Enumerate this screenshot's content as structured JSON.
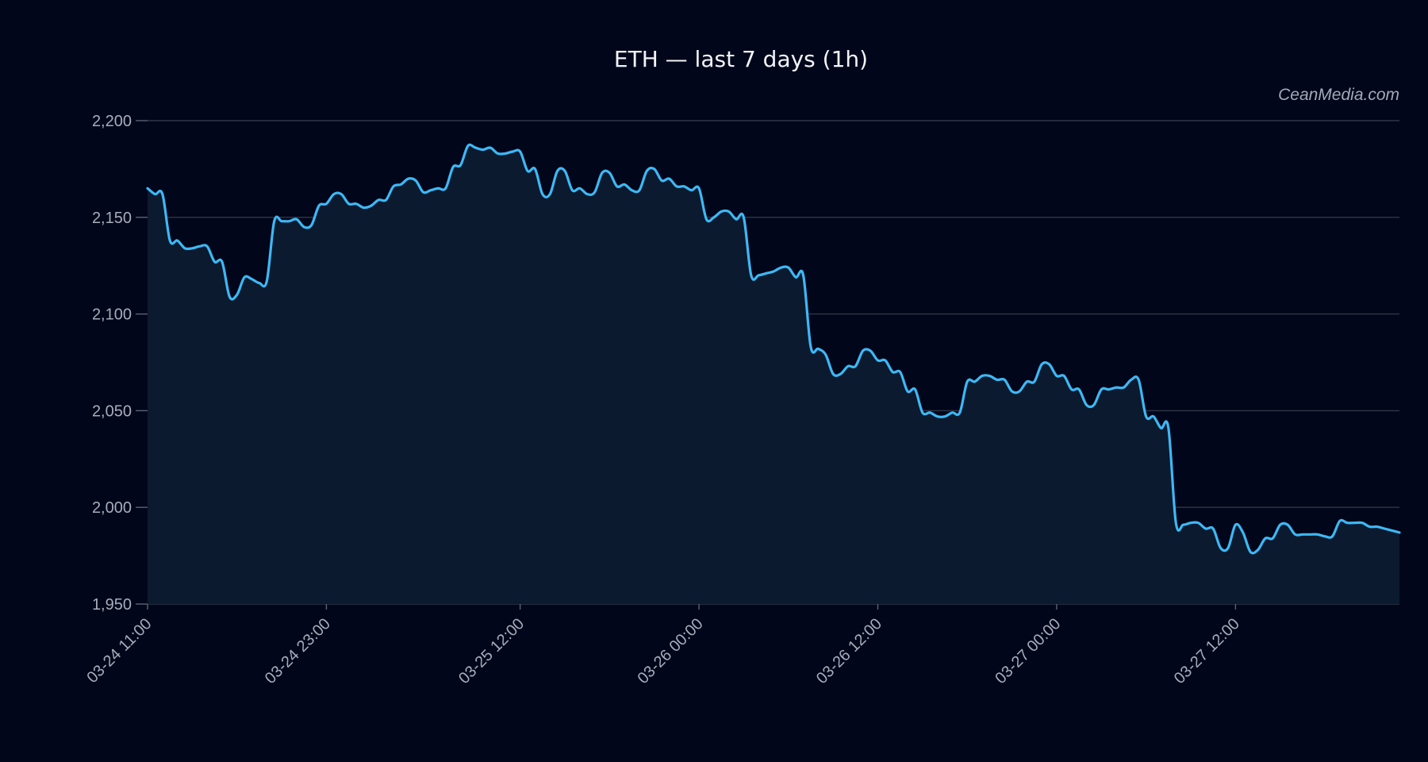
{
  "chart_data": {
    "type": "line",
    "title": "ETH — last 7 days (1h)",
    "watermark": "CeanMedia.com",
    "xlabel": "",
    "ylabel": "",
    "ylim": [
      1950,
      2200
    ],
    "y_ticks": [
      1950,
      2000,
      2050,
      2100,
      2150,
      2200
    ],
    "y_tick_labels": [
      "1,950",
      "2,000",
      "2,050",
      "2,100",
      "2,150",
      "2,200"
    ],
    "x_tick_labels": [
      "03-24 11:00",
      "03-24 23:00",
      "03-25 12:00",
      "03-26 00:00",
      "03-26 12:00",
      "03-27 00:00",
      "03-27 12:00"
    ],
    "x_tick_hours": [
      0,
      12,
      25,
      37,
      49,
      61,
      73
    ],
    "hours_total": 84,
    "grid": true,
    "area_fill": true,
    "colors": {
      "background": "#02061a",
      "line": "#3db8f5",
      "area": "#0b1a2e",
      "grid": "#2e3646",
      "text": "#a7adba",
      "title": "#f1f4f8"
    },
    "series": [
      {
        "points": [
          [
            0,
            2165
          ],
          [
            0.5,
            2162
          ],
          [
            1,
            2162
          ],
          [
            1.5,
            2138
          ],
          [
            2,
            2138
          ],
          [
            2.5,
            2134
          ],
          [
            3,
            2134
          ],
          [
            3.5,
            2135
          ],
          [
            4,
            2135
          ],
          [
            4.5,
            2127
          ],
          [
            5,
            2127
          ],
          [
            5.5,
            2109
          ],
          [
            6,
            2110
          ],
          [
            6.5,
            2119
          ],
          [
            7,
            2118
          ],
          [
            7.5,
            2116
          ],
          [
            8,
            2117
          ],
          [
            8.5,
            2148
          ],
          [
            9,
            2148
          ],
          [
            9.5,
            2148
          ],
          [
            10,
            2149
          ],
          [
            10.5,
            2145
          ],
          [
            11,
            2146
          ],
          [
            11.5,
            2156
          ],
          [
            12,
            2157
          ],
          [
            12.5,
            2162
          ],
          [
            13,
            2162
          ],
          [
            13.5,
            2157
          ],
          [
            14,
            2157
          ],
          [
            14.5,
            2155
          ],
          [
            15,
            2156
          ],
          [
            15.5,
            2159
          ],
          [
            16,
            2159
          ],
          [
            16.5,
            2166
          ],
          [
            17,
            2167
          ],
          [
            17.5,
            2170
          ],
          [
            18,
            2169
          ],
          [
            18.5,
            2163
          ],
          [
            19,
            2164
          ],
          [
            19.5,
            2165
          ],
          [
            20,
            2165
          ],
          [
            20.5,
            2176
          ],
          [
            21,
            2177
          ],
          [
            21.5,
            2187
          ],
          [
            22,
            2186
          ],
          [
            22.5,
            2185
          ],
          [
            23,
            2186
          ],
          [
            23.5,
            2183
          ],
          [
            24,
            2183
          ],
          [
            24.5,
            2184
          ],
          [
            25,
            2184
          ],
          [
            25.5,
            2174
          ],
          [
            26,
            2175
          ],
          [
            26.5,
            2162
          ],
          [
            27,
            2162
          ],
          [
            27.5,
            2174
          ],
          [
            28,
            2174
          ],
          [
            28.5,
            2164
          ],
          [
            29,
            2165
          ],
          [
            29.5,
            2162
          ],
          [
            30,
            2163
          ],
          [
            30.5,
            2173
          ],
          [
            31,
            2173
          ],
          [
            31.5,
            2166
          ],
          [
            32,
            2167
          ],
          [
            32.5,
            2164
          ],
          [
            33,
            2164
          ],
          [
            33.5,
            2174
          ],
          [
            34,
            2175
          ],
          [
            34.5,
            2169
          ],
          [
            35,
            2170
          ],
          [
            35.5,
            2166
          ],
          [
            36,
            2166
          ],
          [
            36.5,
            2164
          ],
          [
            37,
            2165
          ],
          [
            37.5,
            2149
          ],
          [
            38,
            2150
          ],
          [
            38.5,
            2153
          ],
          [
            39,
            2153
          ],
          [
            39.5,
            2149
          ],
          [
            40,
            2150
          ],
          [
            40.5,
            2120
          ],
          [
            41,
            2120
          ],
          [
            41.5,
            2121
          ],
          [
            42,
            2122
          ],
          [
            42.5,
            2124
          ],
          [
            43,
            2124
          ],
          [
            43.5,
            2119
          ],
          [
            44,
            2120
          ],
          [
            44.5,
            2083
          ],
          [
            45,
            2082
          ],
          [
            45.5,
            2079
          ],
          [
            46,
            2069
          ],
          [
            46.5,
            2069
          ],
          [
            47,
            2073
          ],
          [
            47.5,
            2073
          ],
          [
            48,
            2081
          ],
          [
            48.5,
            2081
          ],
          [
            49,
            2076
          ],
          [
            49.5,
            2076
          ],
          [
            50,
            2070
          ],
          [
            50.5,
            2070
          ],
          [
            51,
            2060
          ],
          [
            51.5,
            2061
          ],
          [
            52,
            2049
          ],
          [
            52.5,
            2049
          ],
          [
            53,
            2047
          ],
          [
            53.5,
            2047
          ],
          [
            54,
            2049
          ],
          [
            54.5,
            2049
          ],
          [
            55,
            2065
          ],
          [
            55.5,
            2065
          ],
          [
            56,
            2068
          ],
          [
            56.5,
            2068
          ],
          [
            57,
            2066
          ],
          [
            57.5,
            2066
          ],
          [
            58,
            2060
          ],
          [
            58.5,
            2060
          ],
          [
            59,
            2065
          ],
          [
            59.5,
            2065
          ],
          [
            60,
            2074
          ],
          [
            60.5,
            2074
          ],
          [
            61,
            2068
          ],
          [
            61.5,
            2068
          ],
          [
            62,
            2061
          ],
          [
            62.5,
            2061
          ],
          [
            63,
            2053
          ],
          [
            63.5,
            2053
          ],
          [
            64,
            2061
          ],
          [
            64.5,
            2061
          ],
          [
            65,
            2062
          ],
          [
            65.5,
            2062
          ],
          [
            66,
            2066
          ],
          [
            66.5,
            2066
          ],
          [
            67,
            2047
          ],
          [
            67.5,
            2047
          ],
          [
            68,
            2041
          ],
          [
            68.5,
            2041
          ],
          [
            69,
            1992
          ],
          [
            69.5,
            1991
          ],
          [
            70,
            1992
          ],
          [
            70.5,
            1992
          ],
          [
            71,
            1989
          ],
          [
            71.5,
            1989
          ],
          [
            72,
            1979
          ],
          [
            72.5,
            1979
          ],
          [
            73,
            1991
          ],
          [
            73.5,
            1987
          ],
          [
            74,
            1977
          ],
          [
            74.5,
            1978
          ],
          [
            75,
            1984
          ],
          [
            75.5,
            1984
          ],
          [
            76,
            1991
          ],
          [
            76.5,
            1991
          ],
          [
            77,
            1986
          ],
          [
            77.5,
            1986
          ],
          [
            78,
            1986
          ],
          [
            78.5,
            1986
          ],
          [
            79,
            1985
          ],
          [
            79.5,
            1985
          ],
          [
            80,
            1993
          ],
          [
            80.5,
            1992
          ],
          [
            81,
            1992
          ],
          [
            81.5,
            1992
          ],
          [
            82,
            1990
          ],
          [
            82.5,
            1990
          ],
          [
            83,
            1989
          ],
          [
            83.5,
            1988
          ],
          [
            84,
            1987
          ]
        ]
      }
    ]
  }
}
